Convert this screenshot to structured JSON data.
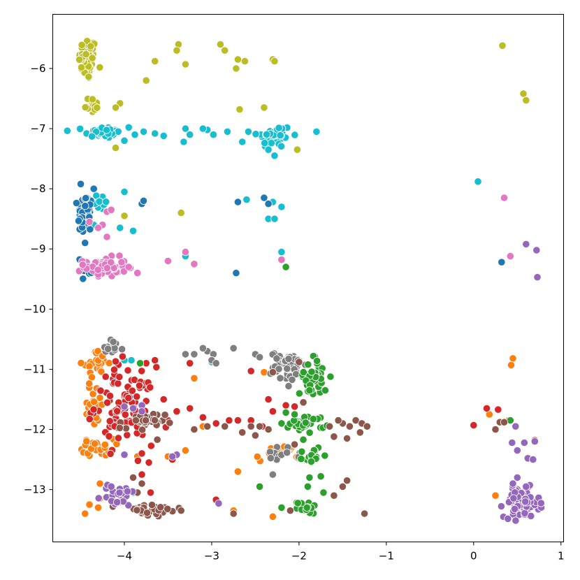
{
  "chart_data": {
    "type": "scatter",
    "title": "",
    "xlabel": "",
    "ylabel": "",
    "xlim": [
      -4.82,
      1.03
    ],
    "ylim": [
      -13.87,
      -5.1
    ],
    "x_ticks": [
      -4,
      -3,
      -2,
      -1,
      0,
      1
    ],
    "y_ticks": [
      -6,
      -7,
      -8,
      -9,
      -10,
      -11,
      -12,
      -13
    ],
    "x_tick_labels": [
      "−4",
      "−3",
      "−2",
      "−1",
      "0",
      "1"
    ],
    "y_tick_labels": [
      "−6",
      "−7",
      "−8",
      "−9",
      "−10",
      "−11",
      "−12",
      "−13"
    ],
    "grid": false,
    "legend": "none",
    "series": [
      {
        "color": "#bcbd22",
        "clusters": [
          {
            "cx": -4.42,
            "cy": -5.85,
            "sx": 0.05,
            "sy": 0.18,
            "n": 55
          },
          {
            "cx": -4.38,
            "cy": -6.6,
            "sx": 0.05,
            "sy": 0.07,
            "n": 18
          }
        ],
        "points": [
          [
            -4.05,
            -6.58
          ],
          [
            -4.1,
            -6.65
          ],
          [
            -3.75,
            -6.2
          ],
          [
            -3.65,
            -5.88
          ],
          [
            -3.38,
            -5.6
          ],
          [
            -3.4,
            -5.7
          ],
          [
            -3.3,
            -5.93
          ],
          [
            -2.9,
            -5.6
          ],
          [
            -2.85,
            -5.7
          ],
          [
            -2.7,
            -5.85
          ],
          [
            -2.62,
            -5.88
          ],
          [
            -2.72,
            -6.0
          ],
          [
            -2.3,
            -5.85
          ],
          [
            -2.28,
            -5.88
          ],
          [
            -2.68,
            -6.68
          ],
          [
            -2.4,
            -6.65
          ],
          [
            -4.1,
            -7.32
          ],
          [
            -2.02,
            -7.35
          ],
          [
            0.33,
            -5.62
          ],
          [
            0.57,
            -6.42
          ],
          [
            0.6,
            -6.53
          ],
          [
            -3.35,
            -8.4
          ],
          [
            -4.0,
            -8.45
          ]
        ]
      },
      {
        "color": "#17becf",
        "clusters": [
          {
            "cx": -4.25,
            "cy": -7.06,
            "sx": 0.1,
            "sy": 0.05,
            "n": 40
          },
          {
            "cx": -2.28,
            "cy": -7.12,
            "sx": 0.1,
            "sy": 0.1,
            "n": 35
          },
          {
            "cx": -4.28,
            "cy": -8.2,
            "sx": 0.05,
            "sy": 0.1,
            "n": 12
          }
        ],
        "points": [
          [
            -3.95,
            -6.98
          ],
          [
            -3.88,
            -7.1
          ],
          [
            -4.0,
            -7.2
          ],
          [
            -3.78,
            -7.05
          ],
          [
            -3.65,
            -7.08
          ],
          [
            -3.55,
            -7.12
          ],
          [
            -3.3,
            -7.0
          ],
          [
            -3.25,
            -7.1
          ],
          [
            -3.32,
            -7.22
          ],
          [
            -3.05,
            -7.02
          ],
          [
            -2.98,
            -7.1
          ],
          [
            -2.82,
            -7.05
          ],
          [
            -2.65,
            -7.22
          ],
          [
            -2.58,
            -7.05
          ],
          [
            -2.35,
            -7.35
          ],
          [
            -2.28,
            -7.45
          ],
          [
            -1.8,
            -7.05
          ],
          [
            -2.3,
            -8.22
          ],
          [
            -2.2,
            -8.3
          ],
          [
            -2.35,
            -8.5
          ],
          [
            -2.28,
            -8.5
          ],
          [
            -2.6,
            -8.18
          ],
          [
            -3.9,
            -8.7
          ],
          [
            -4.05,
            -8.65
          ],
          [
            -4.0,
            -8.05
          ],
          [
            -4.35,
            -8.6
          ],
          [
            -2.2,
            -9.05
          ],
          [
            -3.3,
            -9.12
          ],
          [
            -3.92,
            -10.85
          ],
          [
            -4.0,
            -10.85
          ],
          [
            -4.3,
            -10.85
          ],
          [
            -3.0,
            -10.88
          ],
          [
            -2.0,
            -10.85
          ],
          [
            -3.9,
            -13.05
          ],
          [
            0.05,
            -7.88
          ],
          [
            -3.1,
            -7.0
          ]
        ]
      },
      {
        "color": "#1f77b4",
        "clusters": [
          {
            "cx": -4.45,
            "cy": -8.42,
            "sx": 0.04,
            "sy": 0.18,
            "n": 55
          },
          {
            "cx": -4.38,
            "cy": -9.38,
            "sx": 0.06,
            "sy": 0.05,
            "n": 10
          }
        ],
        "points": [
          [
            -4.5,
            -7.92
          ],
          [
            -4.35,
            -8.0
          ],
          [
            -4.15,
            -8.35
          ],
          [
            -3.8,
            -8.25
          ],
          [
            -3.78,
            -8.2
          ],
          [
            -2.7,
            -8.22
          ],
          [
            -2.4,
            -8.15
          ],
          [
            -2.35,
            -8.25
          ],
          [
            -4.45,
            -8.9
          ],
          [
            -2.72,
            -9.4
          ],
          [
            0.32,
            -9.22
          ]
        ]
      },
      {
        "color": "#e377c2",
        "clusters": [
          {
            "cx": -4.22,
            "cy": -9.3,
            "sx": 0.12,
            "sy": 0.08,
            "n": 60
          }
        ],
        "points": [
          [
            -4.2,
            -8.38
          ],
          [
            -4.15,
            -8.35
          ],
          [
            -4.25,
            -8.6
          ],
          [
            -4.2,
            -8.8
          ],
          [
            -4.3,
            -8.65
          ],
          [
            -4.4,
            -8.55
          ],
          [
            -3.95,
            -9.3
          ],
          [
            -3.85,
            -9.4
          ],
          [
            -3.5,
            -9.2
          ],
          [
            -3.3,
            -9.05
          ],
          [
            -3.2,
            -9.25
          ],
          [
            -2.2,
            -9.18
          ],
          [
            0.35,
            -8.15
          ],
          [
            0.42,
            -9.12
          ]
        ]
      },
      {
        "color": "#ff7f0e",
        "clusters": [
          {
            "cx": -4.32,
            "cy": -10.9,
            "sx": 0.07,
            "sy": 0.1,
            "n": 22
          },
          {
            "cx": -4.35,
            "cy": -11.6,
            "sx": 0.06,
            "sy": 0.2,
            "n": 25
          },
          {
            "cx": -4.3,
            "cy": -12.3,
            "sx": 0.09,
            "sy": 0.07,
            "n": 30
          },
          {
            "cx": -2.25,
            "cy": -12.4,
            "sx": 0.12,
            "sy": 0.07,
            "n": 18
          }
        ],
        "points": [
          [
            -4.4,
            -13.25
          ],
          [
            -4.45,
            -13.4
          ],
          [
            -4.3,
            -13.3
          ],
          [
            -4.28,
            -13.15
          ],
          [
            -3.3,
            -12.35
          ],
          [
            -3.1,
            -11.95
          ],
          [
            -3.85,
            -12.45
          ],
          [
            -3.5,
            -12.45
          ],
          [
            -3.45,
            -12.45
          ],
          [
            -3.2,
            -11.15
          ],
          [
            -2.7,
            -12.7
          ],
          [
            -2.3,
            -13.45
          ],
          [
            -2.75,
            -13.35
          ],
          [
            -2.4,
            -11.05
          ],
          [
            0.45,
            -10.82
          ],
          [
            0.43,
            -10.93
          ],
          [
            0.25,
            -13.1
          ],
          [
            0.4,
            -11.85
          ],
          [
            0.18,
            -11.75
          ],
          [
            -4.28,
            -12.9
          ]
        ]
      },
      {
        "color": "#d62728",
        "clusters": [
          {
            "cx": -4.0,
            "cy": -11.6,
            "sx": 0.17,
            "sy": 0.32,
            "n": 95
          }
        ],
        "points": [
          [
            -3.55,
            -11.5
          ],
          [
            -3.5,
            -11.85
          ],
          [
            -3.4,
            -11.7
          ],
          [
            -3.25,
            -11.65
          ],
          [
            -3.1,
            -11.8
          ],
          [
            -2.95,
            -11.9
          ],
          [
            -2.8,
            -11.85
          ],
          [
            -3.65,
            -10.85
          ],
          [
            -3.75,
            -10.9
          ],
          [
            -3.25,
            -10.9
          ],
          [
            -2.55,
            -11.85
          ],
          [
            -2.35,
            -11.5
          ],
          [
            -2.3,
            -11.7
          ],
          [
            -2.42,
            -11.95
          ],
          [
            -2.15,
            -11.6
          ],
          [
            -2.05,
            -11.62
          ],
          [
            -3.8,
            -12.4
          ],
          [
            -3.72,
            -12.55
          ],
          [
            -3.45,
            -12.5
          ],
          [
            -3.7,
            -13.05
          ],
          [
            -3.8,
            -12.75
          ],
          [
            -2.7,
            -11.85
          ],
          [
            -2.55,
            -11.03
          ],
          [
            0.0,
            -11.93
          ],
          [
            0.15,
            -11.65
          ],
          [
            0.28,
            -11.67
          ],
          [
            0.7,
            -12.18
          ],
          [
            -2.95,
            -13.17
          ],
          [
            -4.1,
            -10.87
          ],
          [
            -2.28,
            -10.95
          ]
        ]
      },
      {
        "color": "#7f7f7f",
        "clusters": [
          {
            "cx": -4.15,
            "cy": -10.65,
            "sx": 0.07,
            "sy": 0.07,
            "n": 14
          },
          {
            "cx": -2.12,
            "cy": -10.95,
            "sx": 0.1,
            "sy": 0.12,
            "n": 60
          },
          {
            "cx": -2.2,
            "cy": -12.42,
            "sx": 0.1,
            "sy": 0.06,
            "n": 14
          }
        ],
        "points": [
          [
            -3.05,
            -10.7
          ],
          [
            -2.98,
            -10.75
          ],
          [
            -3.0,
            -10.85
          ],
          [
            -2.95,
            -10.9
          ],
          [
            -3.2,
            -10.75
          ],
          [
            -2.75,
            -10.65
          ],
          [
            -3.3,
            -10.75
          ],
          [
            -2.5,
            -10.75
          ],
          [
            -2.45,
            -10.8
          ],
          [
            -2.3,
            -12.75
          ],
          [
            -3.1,
            -10.65
          ]
        ]
      },
      {
        "color": "#2ca02c",
        "clusters": [
          {
            "cx": -1.85,
            "cy": -11.1,
            "sx": 0.07,
            "sy": 0.16,
            "n": 38
          },
          {
            "cx": -1.9,
            "cy": -11.9,
            "sx": 0.1,
            "sy": 0.07,
            "n": 30
          },
          {
            "cx": -1.85,
            "cy": -12.42,
            "sx": 0.05,
            "sy": 0.08,
            "n": 16
          },
          {
            "cx": -1.9,
            "cy": -13.3,
            "sx": 0.06,
            "sy": 0.05,
            "n": 14
          }
        ],
        "points": [
          [
            -2.15,
            -11.72
          ],
          [
            -2.05,
            -11.75
          ],
          [
            -2.2,
            -11.9
          ],
          [
            -1.88,
            -11.35
          ],
          [
            -1.7,
            -11.35
          ],
          [
            -1.88,
            -12.8
          ],
          [
            -1.9,
            -12.95
          ],
          [
            -2.45,
            -12.95
          ],
          [
            -2.2,
            -13.3
          ],
          [
            -1.72,
            -13.05
          ],
          [
            -1.75,
            -12.78
          ],
          [
            -2.15,
            -9.3
          ],
          [
            -3.82,
            -10.9
          ],
          [
            0.42,
            -11.85
          ]
        ]
      },
      {
        "color": "#8c564b",
        "clusters": [
          {
            "cx": -3.8,
            "cy": -11.9,
            "sx": 0.13,
            "sy": 0.09,
            "n": 30
          },
          {
            "cx": -3.7,
            "cy": -13.35,
            "sx": 0.18,
            "sy": 0.06,
            "n": 30
          }
        ],
        "points": [
          [
            -3.2,
            -12.0
          ],
          [
            -3.05,
            -11.95
          ],
          [
            -2.55,
            -11.95
          ],
          [
            -2.65,
            -12.05
          ],
          [
            -2.45,
            -11.95
          ],
          [
            -2.35,
            -12.0
          ],
          [
            -2.5,
            -12.1
          ],
          [
            -1.65,
            -11.95
          ],
          [
            -1.5,
            -11.9
          ],
          [
            -1.42,
            -11.95
          ],
          [
            -1.35,
            -11.85
          ],
          [
            -1.28,
            -11.9
          ],
          [
            -1.22,
            -11.95
          ],
          [
            -1.45,
            -12.15
          ],
          [
            -1.55,
            -11.85
          ],
          [
            -1.3,
            -12.05
          ],
          [
            -1.6,
            -12.12
          ],
          [
            -2.05,
            -12.25
          ],
          [
            -1.95,
            -11.55
          ],
          [
            -2.85,
            -11.95
          ],
          [
            -2.3,
            -11.05
          ],
          [
            -3.35,
            -13.35
          ],
          [
            -2.75,
            -13.4
          ],
          [
            -1.6,
            -13.1
          ],
          [
            -1.5,
            -12.95
          ],
          [
            -1.45,
            -12.85
          ],
          [
            -1.25,
            -13.4
          ],
          [
            -2.1,
            -13.35
          ],
          [
            -3.9,
            -12.8
          ],
          [
            -3.8,
            -12.9
          ],
          [
            0.3,
            -11.88
          ],
          [
            0.35,
            -11.88
          ],
          [
            0.25,
            -12.0
          ],
          [
            -4.05,
            -13.2
          ],
          [
            -3.85,
            -13.05
          ],
          [
            -2.0,
            -10.88
          ]
        ]
      },
      {
        "color": "#9467bd",
        "clusters": [
          {
            "cx": 0.55,
            "cy": -13.22,
            "sx": 0.1,
            "sy": 0.12,
            "n": 85
          },
          {
            "cx": -4.08,
            "cy": -13.1,
            "sx": 0.1,
            "sy": 0.1,
            "n": 22
          }
        ],
        "points": [
          [
            0.6,
            -8.92
          ],
          [
            0.72,
            -9.02
          ],
          [
            0.73,
            -9.47
          ],
          [
            0.44,
            -12.22
          ],
          [
            0.5,
            -12.35
          ],
          [
            0.58,
            -12.22
          ],
          [
            0.62,
            -12.48
          ],
          [
            0.7,
            -12.2
          ],
          [
            0.68,
            -12.5
          ],
          [
            0.6,
            -12.95
          ],
          [
            0.5,
            -12.8
          ],
          [
            0.45,
            -12.9
          ],
          [
            0.48,
            -11.95
          ],
          [
            -4.0,
            -11.62
          ],
          [
            -3.9,
            -11.65
          ],
          [
            -3.8,
            -11.6
          ],
          [
            -4.0,
            -12.42
          ],
          [
            -3.8,
            -11.7
          ],
          [
            -4.15,
            -12.95
          ],
          [
            -2.92,
            -13.23
          ],
          [
            -3.4,
            -12.42
          ],
          [
            -3.45,
            -12.45
          ]
        ]
      }
    ]
  }
}
